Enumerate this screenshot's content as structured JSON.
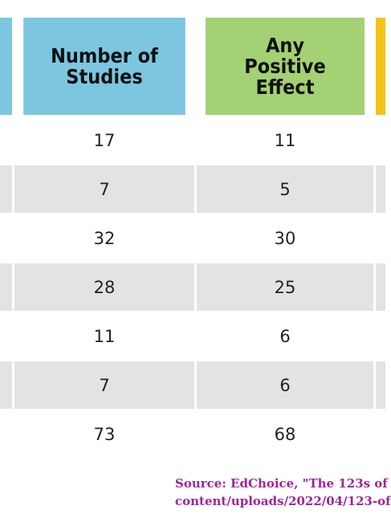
{
  "header": {
    "studies_label": "Number of\nStudies",
    "positive_label": "Any\nPositive\nEffect"
  },
  "rows": [
    {
      "studies": "17",
      "positive": "11"
    },
    {
      "studies": "7",
      "positive": "5"
    },
    {
      "studies": "32",
      "positive": "30"
    },
    {
      "studies": "28",
      "positive": "25"
    },
    {
      "studies": "11",
      "positive": "6"
    },
    {
      "studies": "7",
      "positive": "6"
    },
    {
      "studies": "73",
      "positive": "68"
    }
  ],
  "source": {
    "line1": "Source: EdChoice, \"The 123s of",
    "line2": "content/uploads/2022/04/123-of"
  },
  "colors": {
    "studies_header": "#7cc6e0",
    "positive_header": "#a3d173",
    "next_header": "#f5c218",
    "shaded_row": "#e3e3e3",
    "source_text": "#a0249a"
  }
}
